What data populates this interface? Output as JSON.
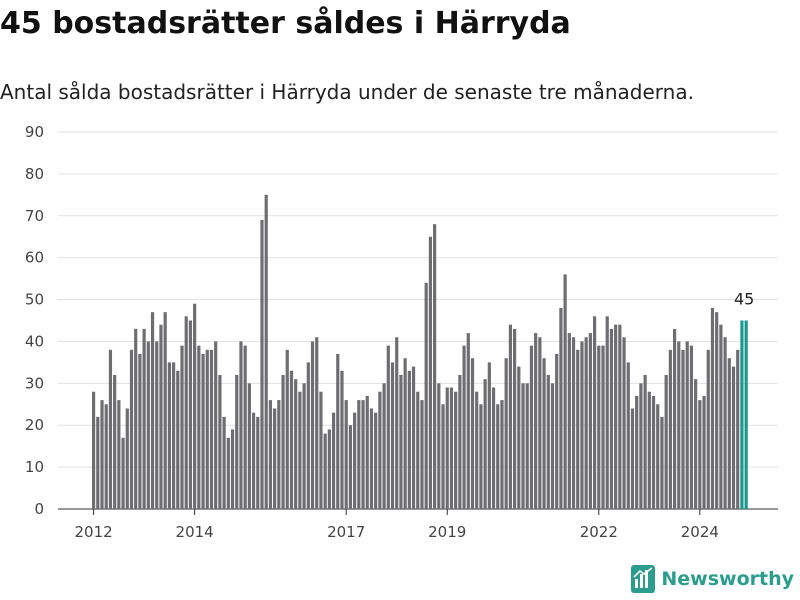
{
  "title": "45 bostadsrätter såldes i Härryda",
  "subtitle": "Antal sålda bostadsrätter i Härryda under de senaste tre månaderna.",
  "brand": {
    "name": "Newsworthy",
    "color": "#2a9d8f"
  },
  "chart_data": {
    "type": "bar",
    "x_start": "2012-01",
    "x_ticks": [
      "2012",
      "2014",
      "2017",
      "2019",
      "2022",
      "2024"
    ],
    "ylim": [
      0,
      90
    ],
    "y_ticks": [
      0,
      10,
      20,
      30,
      40,
      50,
      60,
      70,
      80,
      90
    ],
    "grid": true,
    "bar_color": "#6e6d72",
    "highlight_color": "#1a9a8f",
    "highlight_last": true,
    "last_value_label": "45",
    "values": [
      28,
      22,
      26,
      25,
      38,
      32,
      26,
      17,
      24,
      38,
      43,
      37,
      43,
      40,
      47,
      40,
      44,
      47,
      35,
      35,
      33,
      39,
      46,
      45,
      49,
      39,
      37,
      38,
      38,
      40,
      32,
      22,
      17,
      19,
      32,
      40,
      39,
      30,
      23,
      22,
      69,
      75,
      26,
      24,
      26,
      32,
      38,
      33,
      31,
      28,
      30,
      35,
      40,
      41,
      28,
      18,
      19,
      23,
      37,
      33,
      26,
      20,
      23,
      26,
      26,
      27,
      24,
      23,
      28,
      30,
      39,
      35,
      41,
      32,
      36,
      33,
      34,
      28,
      26,
      54,
      65,
      68,
      30,
      25,
      29,
      29,
      28,
      32,
      39,
      42,
      36,
      28,
      25,
      31,
      35,
      29,
      25,
      26,
      36,
      44,
      43,
      34,
      30,
      30,
      39,
      42,
      41,
      36,
      32,
      30,
      37,
      48,
      56,
      42,
      41,
      38,
      40,
      41,
      42,
      46,
      39,
      39,
      46,
      43,
      44,
      44,
      41,
      35,
      24,
      27,
      30,
      32,
      28,
      27,
      25,
      22,
      32,
      38,
      43,
      40,
      38,
      40,
      39,
      31,
      26,
      27,
      38,
      48,
      47,
      44,
      41,
      36,
      34,
      38,
      45,
      45
    ]
  }
}
